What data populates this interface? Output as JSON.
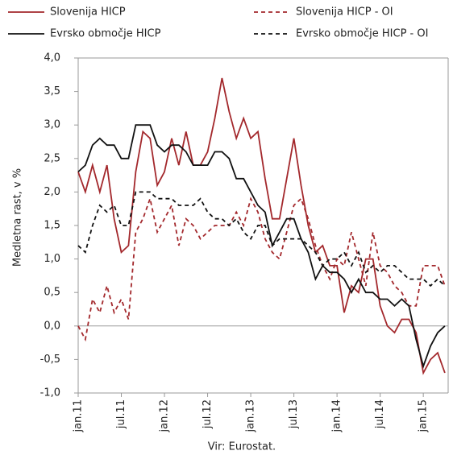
{
  "chart_data": {
    "type": "line",
    "y_label": "Medletna rast, v %",
    "source": "Vir: Eurostat.",
    "categories": [
      "jan.11",
      null,
      null,
      null,
      null,
      null,
      "jul.11",
      null,
      null,
      null,
      null,
      null,
      "jan.12",
      null,
      null,
      null,
      null,
      null,
      "jul.12",
      null,
      null,
      null,
      null,
      null,
      "jan.13",
      null,
      null,
      null,
      null,
      null,
      "jul.13",
      null,
      null,
      null,
      null,
      null,
      "jan.14",
      null,
      null,
      null,
      null,
      null,
      "jul.14",
      null,
      null,
      null,
      null,
      null,
      "jan.15",
      null,
      null,
      null
    ],
    "ylim": [
      -1.0,
      4.0
    ],
    "yticks": [
      {
        "value": -1.0,
        "label": "-1,0"
      },
      {
        "value": -0.5,
        "label": "-0,5"
      },
      {
        "value": 0.0,
        "label": "0,0"
      },
      {
        "value": 0.5,
        "label": "0,5"
      },
      {
        "value": 1.0,
        "label": "1,0"
      },
      {
        "value": 1.5,
        "label": "1,5"
      },
      {
        "value": 2.0,
        "label": "2,0"
      },
      {
        "value": 2.5,
        "label": "2,5"
      },
      {
        "value": 3.0,
        "label": "3,0"
      },
      {
        "value": 3.5,
        "label": "3,5"
      },
      {
        "value": 4.0,
        "label": "4,0"
      }
    ],
    "series": [
      {
        "name": "Slovenija HICP",
        "color": "#a3282c",
        "dashed": false,
        "values": [
          2.3,
          2.0,
          2.4,
          2.0,
          2.4,
          1.6,
          1.1,
          1.2,
          2.3,
          2.9,
          2.8,
          2.1,
          2.3,
          2.8,
          2.4,
          2.9,
          2.4,
          2.4,
          2.6,
          3.1,
          3.7,
          3.2,
          2.8,
          3.1,
          2.8,
          2.9,
          2.2,
          1.6,
          1.6,
          2.2,
          2.8,
          2.1,
          1.5,
          1.1,
          1.2,
          0.9,
          0.9,
          0.2,
          0.6,
          0.5,
          1.0,
          1.0,
          0.3,
          0.0,
          -0.1,
          0.1,
          0.1,
          -0.1,
          -0.7,
          -0.5,
          -0.4,
          -0.7
        ]
      },
      {
        "name": "Slovenija HICP - OI",
        "color": "#a3282c",
        "dashed": true,
        "values": [
          0.0,
          -0.2,
          0.4,
          0.2,
          0.6,
          0.2,
          0.4,
          0.1,
          1.4,
          1.6,
          1.9,
          1.4,
          1.6,
          1.8,
          1.2,
          1.6,
          1.5,
          1.3,
          1.4,
          1.5,
          1.5,
          1.5,
          1.7,
          1.5,
          1.9,
          1.7,
          1.3,
          1.1,
          1.0,
          1.4,
          1.8,
          1.9,
          1.6,
          1.2,
          0.9,
          0.7,
          1.0,
          0.9,
          1.4,
          1.0,
          0.6,
          1.4,
          0.9,
          0.8,
          0.6,
          0.5,
          0.3,
          0.3,
          0.9,
          0.9,
          0.9,
          0.6
        ]
      },
      {
        "name": "Evrsko območje HICP",
        "color": "#111111",
        "dashed": false,
        "values": [
          2.3,
          2.4,
          2.7,
          2.8,
          2.7,
          2.7,
          2.5,
          2.5,
          3.0,
          3.0,
          3.0,
          2.7,
          2.6,
          2.7,
          2.7,
          2.6,
          2.4,
          2.4,
          2.4,
          2.6,
          2.6,
          2.5,
          2.2,
          2.2,
          2.0,
          1.8,
          1.7,
          1.2,
          1.4,
          1.6,
          1.6,
          1.3,
          1.1,
          0.7,
          0.9,
          0.8,
          0.8,
          0.7,
          0.5,
          0.7,
          0.5,
          0.5,
          0.4,
          0.4,
          0.3,
          0.4,
          0.3,
          -0.2,
          -0.6,
          -0.3,
          -0.1,
          0.0
        ]
      },
      {
        "name": "Evrsko območje HICP - OI",
        "color": "#111111",
        "dashed": true,
        "values": [
          1.2,
          1.1,
          1.5,
          1.8,
          1.7,
          1.8,
          1.5,
          1.5,
          2.0,
          2.0,
          2.0,
          1.9,
          1.9,
          1.9,
          1.8,
          1.8,
          1.8,
          1.9,
          1.7,
          1.6,
          1.6,
          1.5,
          1.6,
          1.4,
          1.3,
          1.5,
          1.5,
          1.2,
          1.3,
          1.3,
          1.3,
          1.3,
          1.2,
          1.1,
          0.9,
          1.0,
          1.0,
          1.1,
          0.9,
          1.1,
          0.8,
          0.9,
          0.8,
          0.9,
          0.9,
          0.8,
          0.7,
          0.7,
          0.7,
          0.6,
          0.7,
          0.6
        ]
      }
    ]
  }
}
